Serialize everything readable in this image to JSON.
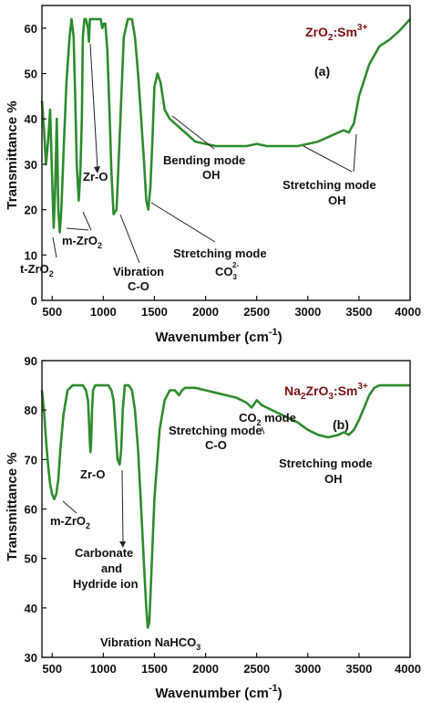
{
  "chart_data": [
    {
      "type": "line",
      "title": "ZrO2:Sm3+",
      "title_parts": {
        "base": "ZrO",
        "sub": "2",
        "mid": ":Sm",
        "sup": "3+"
      },
      "panel_label": "(a)",
      "xlabel": "Wavenumber (cm-1)",
      "xlabel_parts": {
        "main": "Wavenumber (cm",
        "sup": "-1",
        "close": ")"
      },
      "ylabel": "Transmittance %",
      "xlim": [
        400,
        4000
      ],
      "ylim": [
        0,
        65
      ],
      "xticks": [
        500,
        1000,
        1500,
        2000,
        2500,
        3000,
        3500,
        4000
      ],
      "yticks": [
        0,
        10,
        20,
        30,
        40,
        50,
        60
      ],
      "color": "#2e8b2e",
      "series": [
        {
          "x": [
            400,
            420,
            440,
            460,
            480,
            500,
            515,
            530,
            545,
            560,
            575,
            590,
            610,
            640,
            670,
            690,
            710,
            725,
            740,
            760,
            775,
            790,
            800,
            815,
            830,
            850,
            860,
            870,
            880,
            890,
            900,
            920,
            940,
            960,
            975,
            990,
            1005,
            1020,
            1040,
            1060,
            1080,
            1100,
            1130,
            1160,
            1200,
            1240,
            1280,
            1310,
            1340,
            1370,
            1400,
            1420,
            1440,
            1460,
            1480,
            1500,
            1530,
            1560,
            1600,
            1650,
            1700,
            1800,
            1900,
            2000,
            2100,
            2200,
            2300,
            2400,
            2500,
            2600,
            2700,
            2800,
            2900,
            3000,
            3100,
            3200,
            3300,
            3350,
            3400,
            3450,
            3500,
            3600,
            3700,
            3800,
            3900,
            4000
          ],
          "y": [
            44,
            38,
            30,
            35,
            42,
            27,
            16,
            25,
            40,
            20,
            15,
            20,
            32,
            48,
            58,
            62,
            58,
            45,
            30,
            22,
            28,
            40,
            58,
            62,
            62,
            60,
            57,
            62,
            62,
            62,
            62,
            62,
            62,
            62,
            62,
            60,
            61,
            61,
            55,
            42,
            28,
            19,
            20,
            36,
            58,
            62,
            62,
            58,
            50,
            40,
            30,
            22,
            20,
            25,
            35,
            47,
            50,
            48,
            42,
            40,
            39,
            37,
            35,
            34.5,
            34,
            34,
            34,
            34,
            34.5,
            34,
            34,
            34,
            34,
            34.5,
            35,
            36,
            37,
            37.5,
            37,
            39,
            45,
            52,
            56,
            57.5,
            59.5,
            62
          ]
        }
      ],
      "annotations": [
        {
          "text": "Zr-O"
        },
        {
          "text": "m-ZrO",
          "sub": "2"
        },
        {
          "text": "t-ZrO",
          "sub": "2"
        },
        {
          "text": "Vibration"
        },
        {
          "text": "C-O"
        },
        {
          "text": "Bending mode"
        },
        {
          "text": "OH"
        },
        {
          "text": "Stretching mode"
        },
        {
          "text": "CO",
          "sub": "3",
          "sup": "2-"
        },
        {
          "text": "Stretching mode"
        },
        {
          "text": "OH"
        }
      ]
    },
    {
      "type": "line",
      "title": "Na2ZrO3:Sm3+",
      "title_parts": {
        "base": "Na",
        "sub1": "2",
        "mid": "ZrO",
        "sub2": "3",
        "mid2": ":Sm",
        "sup": "3+"
      },
      "panel_label": "(b)",
      "xlabel": "Wavenumber (cm-1)",
      "xlabel_parts": {
        "main": "Wavenumber (cm",
        "sup": "-1",
        "close": ")"
      },
      "ylabel": "Transmittance %",
      "xlim": [
        400,
        4000
      ],
      "ylim": [
        30,
        90
      ],
      "xticks": [
        500,
        1000,
        1500,
        2000,
        2500,
        3000,
        3500,
        4000
      ],
      "yticks": [
        30,
        40,
        50,
        60,
        70,
        80,
        90
      ],
      "color": "#2e8b2e",
      "series": [
        {
          "x": [
            400,
            420,
            440,
            460,
            480,
            500,
            520,
            540,
            560,
            580,
            610,
            650,
            700,
            750,
            800,
            830,
            850,
            860,
            870,
            875,
            880,
            890,
            900,
            920,
            950,
            1000,
            1050,
            1080,
            1100,
            1120,
            1140,
            1160,
            1175,
            1190,
            1210,
            1250,
            1280,
            1310,
            1340,
            1370,
            1400,
            1420,
            1435,
            1450,
            1470,
            1500,
            1550,
            1600,
            1650,
            1700,
            1740,
            1770,
            1800,
            1900,
            2000,
            2100,
            2200,
            2300,
            2400,
            2450,
            2500,
            2550,
            2600,
            2700,
            2800,
            2900,
            3000,
            3100,
            3200,
            3300,
            3350,
            3400,
            3450,
            3500,
            3550,
            3600,
            3650,
            3700,
            3800,
            3900,
            4000
          ],
          "y": [
            84,
            80,
            74,
            69,
            65,
            63,
            62,
            63,
            66,
            72,
            79,
            84,
            85,
            85,
            85,
            84,
            82,
            78,
            73,
            71.5,
            73,
            80,
            84,
            85,
            85,
            85,
            85,
            84,
            82,
            76,
            70,
            69,
            72,
            80,
            85,
            85,
            84,
            80,
            72,
            60,
            48,
            40,
            36,
            37,
            47,
            62,
            76,
            82,
            84,
            84,
            83,
            84,
            84.5,
            84.5,
            84,
            83.5,
            83,
            82.5,
            81.5,
            80.5,
            82,
            81,
            80.5,
            79.5,
            78.5,
            77.5,
            76,
            75,
            74.5,
            75,
            75.5,
            75,
            76,
            78,
            80.5,
            83,
            84.5,
            85,
            85,
            85,
            85
          ]
        }
      ],
      "annotations": [
        {
          "text": "Zr-O"
        },
        {
          "text": "m-ZrO",
          "sub": "2"
        },
        {
          "text": "Carbonate"
        },
        {
          "text": "and"
        },
        {
          "text": "Hydride ion"
        },
        {
          "text": "Vibration NaHCO",
          "sub": "3"
        },
        {
          "text": "Stretching mode"
        },
        {
          "text": "C-O"
        },
        {
          "text": "CO",
          "sub": "2",
          "tail": " mode"
        },
        {
          "text": "Stretching mode"
        },
        {
          "text": "OH"
        }
      ]
    }
  ]
}
